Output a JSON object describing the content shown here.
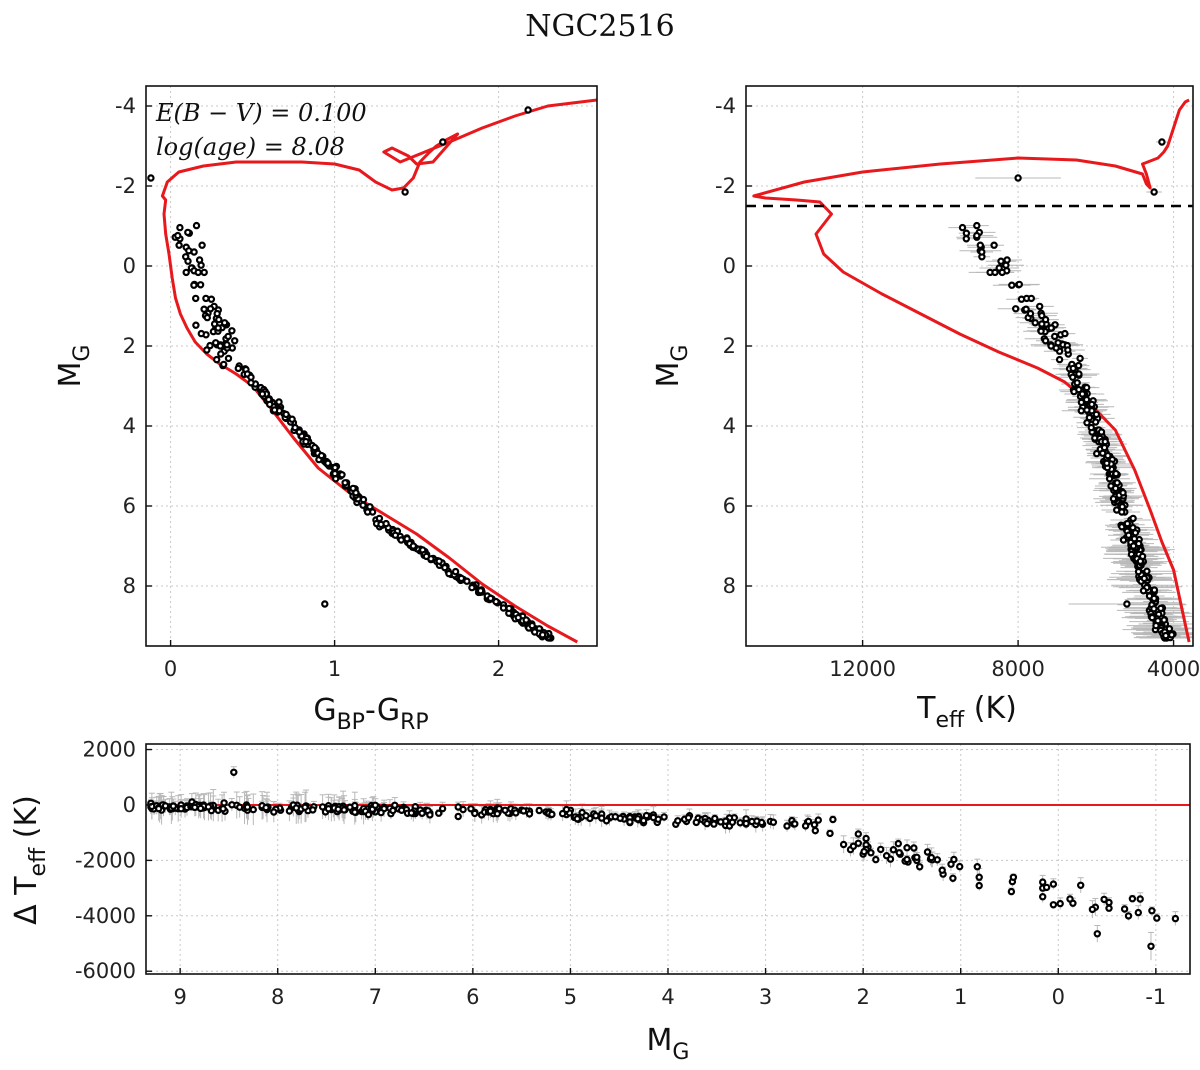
{
  "title": "NGC2516",
  "colors": {
    "isochrone": "#e8191d",
    "points": "#000000",
    "errorbars": "#b8b8b8",
    "grid": "#c8c8c8"
  },
  "chart_data": [
    {
      "id": "cmd",
      "type": "scatter",
      "xlabel": {
        "main": "G",
        "sub1": "BP",
        "mid": "-G",
        "sub2": "RP"
      },
      "ylabel": {
        "main": "M",
        "sub": "G"
      },
      "xlim": [
        -0.15,
        2.6
      ],
      "ylim": [
        -4.5,
        9.5
      ],
      "y_inverted": true,
      "xticks": [
        0,
        1,
        2
      ],
      "yticks": [
        -4,
        -2,
        0,
        2,
        4,
        6,
        8
      ],
      "annotations": [
        "E(B − V) = 0.100",
        "log(age) = 8.08"
      ],
      "isochrone": {
        "x": [
          2.48,
          2.3,
          2.1,
          1.9,
          1.7,
          1.5,
          1.3,
          1.1,
          0.9,
          0.75,
          0.6,
          0.5,
          0.4,
          0.3,
          0.22,
          0.15,
          0.1,
          0.06,
          0.03,
          0.01,
          -0.01,
          -0.03,
          -0.04,
          -0.03,
          -0.05,
          -0.02,
          0.05,
          0.2,
          0.4,
          0.6,
          0.8,
          1.0,
          1.15,
          1.25,
          1.35,
          1.42,
          1.48,
          1.52,
          1.58,
          1.62,
          1.68,
          1.75,
          1.6,
          1.5,
          1.45,
          1.35,
          1.3,
          1.4,
          1.55,
          1.7,
          1.9,
          2.1,
          2.3,
          2.6
        ],
        "y": [
          9.4,
          9.0,
          8.5,
          7.95,
          7.3,
          6.7,
          6.2,
          5.7,
          5.05,
          4.3,
          3.5,
          3.0,
          2.7,
          2.45,
          2.2,
          1.9,
          1.55,
          1.2,
          0.8,
          0.3,
          -0.3,
          -0.8,
          -1.3,
          -1.65,
          -1.75,
          -2.1,
          -2.35,
          -2.5,
          -2.6,
          -2.6,
          -2.6,
          -2.55,
          -2.4,
          -2.1,
          -1.9,
          -1.95,
          -2.2,
          -2.6,
          -2.85,
          -3.0,
          -3.15,
          -3.3,
          -2.6,
          -2.55,
          -2.75,
          -2.95,
          -2.85,
          -2.6,
          -2.85,
          -3.1,
          -3.45,
          -3.75,
          -4.0,
          -4.15
        ]
      },
      "series": {
        "x": [],
        "y": []
      }
    },
    {
      "id": "teff",
      "type": "scatter",
      "xlabel": {
        "main": "T",
        "sub": "eff",
        "rest": " (K)"
      },
      "ylabel": {
        "main": "M",
        "sub": "G"
      },
      "xlim": [
        15000,
        3500
      ],
      "ylim": [
        -4.5,
        9.5
      ],
      "y_inverted": true,
      "xticks": [
        12000,
        8000,
        4000
      ],
      "yticks": [
        -4,
        -2,
        0,
        2,
        4,
        6,
        8
      ],
      "dashed_line_y": -1.5,
      "isochrone": {
        "x": [
          3600,
          3800,
          4000,
          4300,
          4600,
          5000,
          5500,
          6200,
          6800,
          7500,
          8500,
          9500,
          10500,
          11500,
          12500,
          13000,
          13200,
          12800,
          13100,
          13700,
          14500,
          14800,
          13500,
          12000,
          10000,
          8000,
          6500,
          5500,
          4800,
          4700,
          4600,
          4700,
          4800,
          4400,
          4250,
          4150,
          4050,
          3950,
          3850,
          3700,
          3600
        ],
        "y": [
          9.4,
          8.5,
          7.6,
          6.9,
          6.1,
          5.1,
          4.1,
          3.4,
          2.9,
          2.55,
          2.15,
          1.7,
          1.2,
          0.7,
          0.15,
          -0.3,
          -0.8,
          -1.3,
          -1.6,
          -1.65,
          -1.7,
          -1.75,
          -2.1,
          -2.35,
          -2.55,
          -2.7,
          -2.65,
          -2.5,
          -2.3,
          -2.05,
          -1.95,
          -2.3,
          -2.55,
          -2.7,
          -2.85,
          -3.0,
          -3.3,
          -3.6,
          -3.9,
          -4.1,
          -4.15
        ]
      },
      "series": {
        "x": [],
        "y": [],
        "xerr": []
      }
    },
    {
      "id": "residual",
      "type": "scatter",
      "xlabel": {
        "main": "M",
        "sub": "G"
      },
      "ylabel": {
        "main": "Δ T",
        "sub": "eff",
        "rest": " (K)"
      },
      "xlim": [
        9.35,
        -1.35
      ],
      "ylim": [
        -6100,
        2200
      ],
      "x_inverted": true,
      "xticks": [
        9,
        8,
        7,
        6,
        5,
        4,
        3,
        2,
        1,
        0,
        -1
      ],
      "yticks": [
        2000,
        0,
        -2000,
        -4000,
        -6000
      ],
      "zero_line_y": 0,
      "series": {
        "x": [],
        "y": [],
        "yerr": []
      }
    }
  ]
}
